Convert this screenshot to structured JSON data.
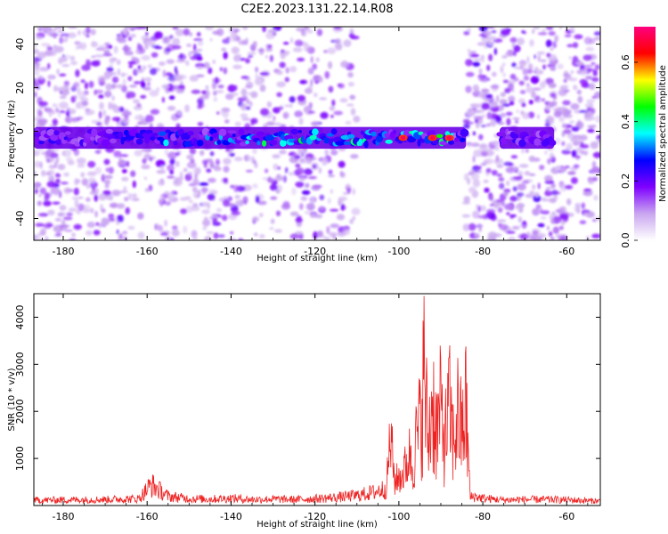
{
  "title": "C2E2.2023.131.22.14.R08",
  "chart_data": [
    {
      "type": "heatmap",
      "xlabel": "Height of straight line (km)",
      "ylabel": "Frequency (Hz)",
      "xlim": [
        -187,
        -52
      ],
      "ylim": [
        -50,
        48
      ],
      "x_ticks": [
        -180,
        -160,
        -140,
        -120,
        -100,
        -80,
        -60
      ],
      "x_tick_labels": [
        "-180",
        "-160",
        "-140",
        "-120",
        "-100",
        "-80",
        "-60"
      ],
      "y_ticks": [
        -40,
        -20,
        0,
        20,
        40
      ],
      "y_tick_labels": [
        "-40",
        "-20",
        "0",
        "20",
        "40"
      ],
      "signal_band": {
        "frequency_center_hz": -3,
        "frequency_halfwidth_hz": 5,
        "segments": [
          [
            -187,
            -84
          ],
          [
            -76,
            -63
          ]
        ]
      },
      "noise_free_gaps": [
        [
          -110,
          -84
        ]
      ],
      "peak_amplitude_heights_km": [
        -99,
        -92,
        -88
      ],
      "colorbar": {
        "label": "Normalized spectral amplitude",
        "range": [
          0.0,
          0.72
        ],
        "ticks": [
          0.0,
          0.2,
          0.4,
          0.6
        ],
        "tick_labels": [
          "0.0",
          "0.2",
          "0.4",
          "0.6"
        ],
        "colors": [
          "#ffffff",
          "#c9a6f0",
          "#7f00ff",
          "#0000ff",
          "#00ffff",
          "#00ff00",
          "#ffff00",
          "#ff0000",
          "#ff0080"
        ]
      },
      "grid": false
    },
    {
      "type": "line",
      "xlabel": "Height of straight line (km)",
      "ylabel": "SNR (10 * v/v)",
      "xlim": [
        -187,
        -52
      ],
      "ylim": [
        0,
        4500
      ],
      "x_ticks": [
        -180,
        -160,
        -140,
        -120,
        -100,
        -80,
        -60
      ],
      "x_tick_labels": [
        "-180",
        "-160",
        "-140",
        "-120",
        "-100",
        "-80",
        "-60"
      ],
      "y_ticks": [
        1000,
        2000,
        3000,
        4000
      ],
      "y_tick_labels": [
        "1000",
        "2000",
        "3000",
        "4000"
      ],
      "color": "#ee2222",
      "grid": false,
      "x": [
        -187,
        -180,
        -170,
        -162,
        -159,
        -155,
        -150,
        -145,
        -140,
        -135,
        -130,
        -125,
        -120,
        -115,
        -110,
        -106,
        -103,
        -102,
        -101,
        -99,
        -97,
        -95,
        -94,
        -93,
        -92,
        -91,
        -90,
        -89,
        -88,
        -87,
        -86,
        -85,
        -84,
        -83,
        -82,
        -80,
        -75,
        -70,
        -65,
        -60,
        -55,
        -52
      ],
      "y": [
        130,
        140,
        150,
        170,
        520,
        230,
        170,
        160,
        180,
        150,
        160,
        150,
        170,
        200,
        250,
        330,
        430,
        1720,
        600,
        800,
        1400,
        2700,
        4480,
        2100,
        3600,
        2500,
        3200,
        2200,
        3300,
        2100,
        3100,
        2400,
        3350,
        200,
        230,
        180,
        140,
        150,
        150,
        140,
        120,
        110
      ]
    }
  ]
}
